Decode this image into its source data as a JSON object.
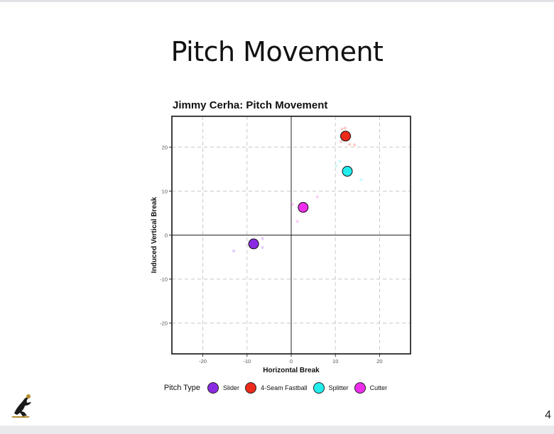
{
  "slide": {
    "title": "Pitch Movement",
    "page_number": "4"
  },
  "logo": {
    "icon": "runner-logo-icon"
  },
  "chart_data": {
    "type": "scatter",
    "title": "Jimmy Cerha: Pitch Movement",
    "xlabel": "Horizontal Break",
    "ylabel": "Induced Vertical Break",
    "xlim": [
      -27,
      27
    ],
    "ylim": [
      -27,
      27
    ],
    "xticks": [
      -20,
      -10,
      0,
      10,
      20
    ],
    "yticks": [
      -20,
      -10,
      0,
      10,
      20
    ],
    "xtick_labels": [
      "-20",
      "-10",
      "0",
      "10",
      "20"
    ],
    "ytick_labels": [
      "-20",
      "-10",
      "0",
      "10",
      "20"
    ],
    "grid": true,
    "legend_title": "Pitch Type",
    "legend_position": "bottom",
    "series": [
      {
        "name": "Slider",
        "color": "#8a2be2",
        "average": {
          "x": -8.5,
          "y": -2.0
        },
        "pitches": [
          {
            "x": -13,
            "y": -3.6
          },
          {
            "x": -6.5,
            "y": -0.8
          },
          {
            "x": -6.5,
            "y": -2.8
          }
        ]
      },
      {
        "name": "4-Seam Fastball",
        "color": "#ee2a1b",
        "average": {
          "x": 12.3,
          "y": 22.5
        },
        "pitches": [
          {
            "x": 11.5,
            "y": 24.1
          },
          {
            "x": 12.2,
            "y": 24.3
          },
          {
            "x": 13.2,
            "y": 20.6
          },
          {
            "x": 14.3,
            "y": 20.5
          },
          {
            "x": 11.3,
            "y": 21.2
          }
        ]
      },
      {
        "name": "Splitter",
        "color": "#22ecec",
        "average": {
          "x": 12.7,
          "y": 14.5
        },
        "pitches": [
          {
            "x": 15.8,
            "y": 12.6
          },
          {
            "x": 10.2,
            "y": 15.8
          },
          {
            "x": 11.0,
            "y": 16.8
          }
        ]
      },
      {
        "name": "Cutter",
        "color": "#ee2dec",
        "average": {
          "x": 2.7,
          "y": 6.3
        },
        "pitches": [
          {
            "x": 1.4,
            "y": 3.1
          },
          {
            "x": 5.9,
            "y": 8.7
          },
          {
            "x": 0.3,
            "y": 7.0
          }
        ]
      }
    ]
  }
}
